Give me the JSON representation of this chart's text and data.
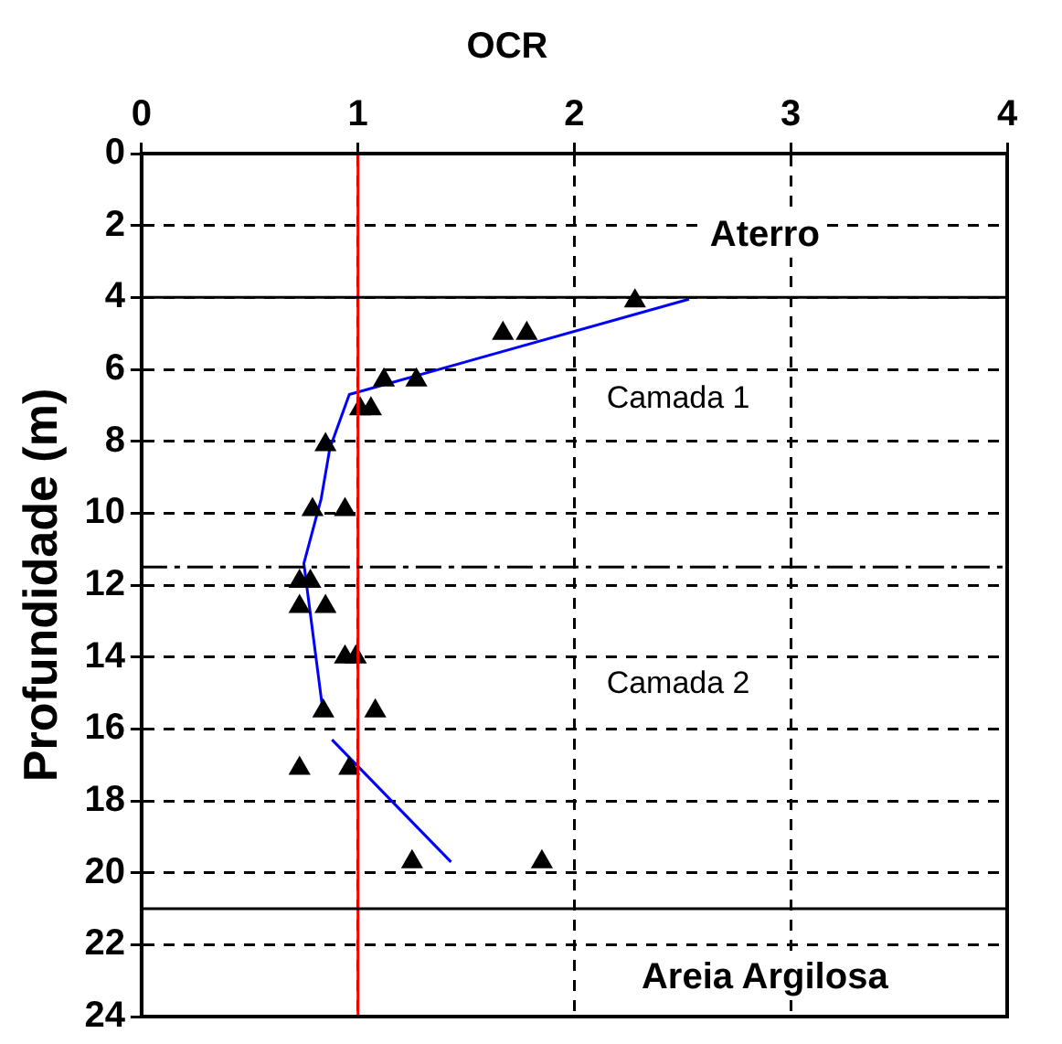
{
  "chart_data": {
    "type": "scatter",
    "title": "OCR",
    "ylabel": "Profundidade (m)",
    "xlim": [
      0,
      4
    ],
    "xticks": [
      0,
      1,
      2,
      3,
      4
    ],
    "ylim": [
      24,
      0
    ],
    "yticks": [
      0,
      2,
      4,
      6,
      8,
      10,
      12,
      14,
      16,
      18,
      20,
      22,
      24
    ],
    "grid": true,
    "legend": false,
    "series": [
      {
        "type": "scatter",
        "marker": "triangle",
        "color": "#000000",
        "x": [
          2.28,
          1.67,
          1.78,
          1.12,
          1.27,
          1.01,
          1.06,
          0.85,
          0.79,
          0.94,
          0.73,
          0.78,
          0.73,
          0.85,
          0.94,
          0.99,
          0.84,
          1.08,
          0.73,
          0.96,
          1.25,
          1.85
        ],
        "values": [
          4.1,
          5.0,
          5.0,
          6.3,
          6.3,
          7.1,
          7.1,
          8.1,
          9.9,
          9.9,
          11.9,
          11.9,
          12.6,
          12.6,
          14.0,
          14.0,
          15.5,
          15.5,
          17.1,
          17.1,
          19.7,
          19.7
        ]
      },
      {
        "type": "line",
        "marker": "none",
        "line_style": "solid",
        "color": "#0000ff",
        "x": [
          2.53,
          0.96,
          0.87,
          0.83,
          0.75,
          0.78,
          0.84
        ],
        "values": [
          4.05,
          6.7,
          8.2,
          9.6,
          11.4,
          12.8,
          15.6
        ]
      },
      {
        "type": "line",
        "marker": "none",
        "line_style": "solid",
        "color": "#0000ff",
        "x": [
          0.88,
          1.43
        ],
        "values": [
          16.3,
          19.7
        ]
      }
    ],
    "ref_lines": [
      {
        "axis": "x",
        "value": 1,
        "color": "#ff0000",
        "line_style": "solid"
      },
      {
        "axis": "y",
        "value": 4,
        "color": "#000000",
        "line_style": "solid"
      },
      {
        "axis": "y",
        "value": 11.5,
        "color": "#000000",
        "line_style": "dashdot"
      },
      {
        "axis": "y",
        "value": 21,
        "color": "#000000",
        "line_style": "solid"
      }
    ],
    "annotations": [
      "Aterro",
      "Camada 1",
      "Camada 2",
      "Areia Argilosa"
    ]
  }
}
